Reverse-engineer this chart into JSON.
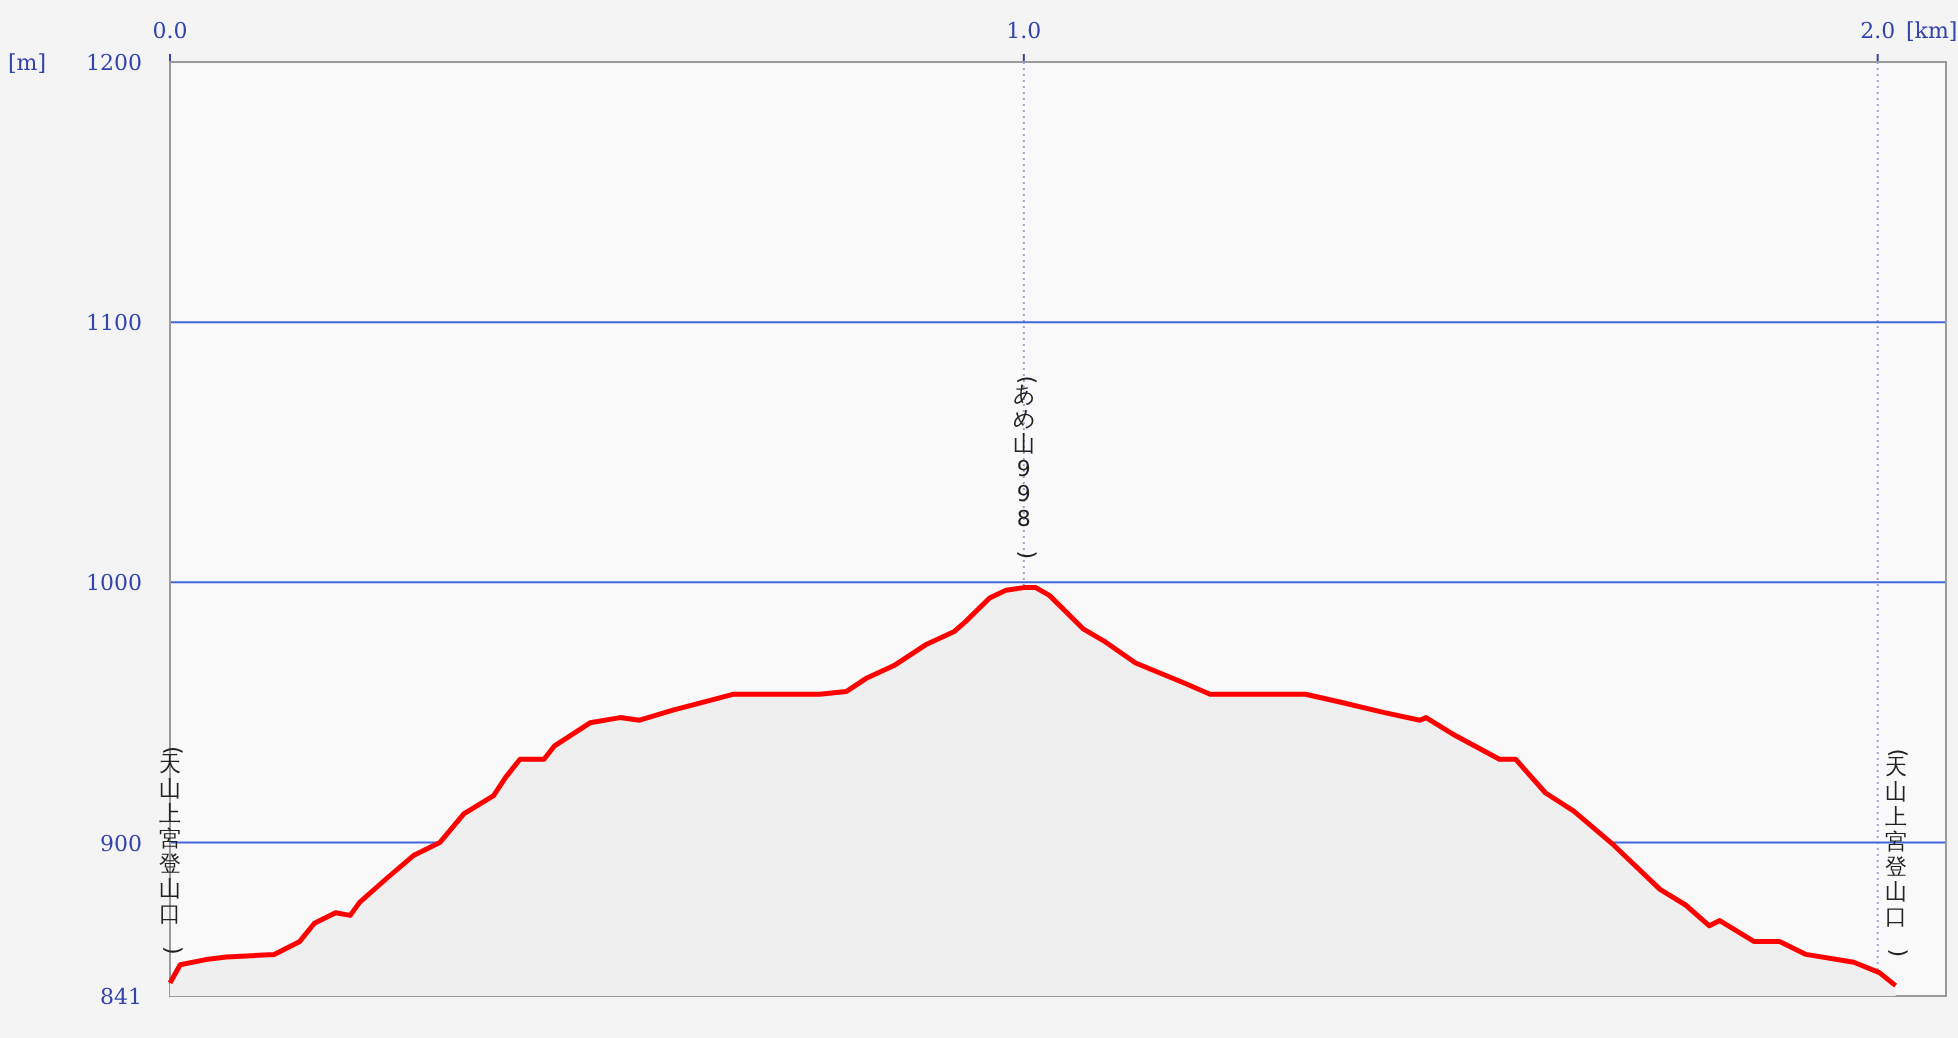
{
  "chart_data": {
    "type": "area",
    "xlabel": "[km]",
    "ylabel": "[m]",
    "xlim": [
      0,
      2.08
    ],
    "xticks": [
      {
        "value": 0,
        "label": "0.0"
      },
      {
        "value": 1,
        "label": "1.0"
      },
      {
        "value": 2,
        "label": "2.0"
      }
    ],
    "ylim": [
      841,
      1200
    ],
    "yticks": [
      841,
      900,
      1000,
      1100,
      1200
    ],
    "grid": true,
    "series": [
      {
        "color": "#ff0000",
        "x": [
          0,
          0.012,
          0.042,
          0.066,
          0.122,
          0.152,
          0.169,
          0.194,
          0.211,
          0.222,
          0.253,
          0.285,
          0.316,
          0.344,
          0.379,
          0.393,
          0.41,
          0.438,
          0.45,
          0.492,
          0.527,
          0.55,
          0.59,
          0.637,
          0.66,
          0.761,
          0.792,
          0.815,
          0.848,
          0.885,
          0.918,
          0.932,
          0.96,
          0.979,
          1.0,
          1.014,
          1.03,
          1.07,
          1.096,
          1.131,
          1.19,
          1.218,
          1.33,
          1.37,
          1.421,
          1.464,
          1.471,
          1.506,
          1.557,
          1.576,
          1.611,
          1.644,
          1.691,
          1.745,
          1.775,
          1.803,
          1.815,
          1.855,
          1.885,
          1.916,
          1.972,
          2.002,
          2.021
        ],
        "values": [
          846,
          853,
          855,
          856,
          857,
          862,
          869,
          873,
          872,
          877,
          886,
          895,
          900,
          911,
          918,
          925,
          932,
          932,
          937,
          946,
          948,
          947,
          951,
          955,
          957,
          957,
          958,
          963,
          968,
          976,
          981,
          985,
          994,
          997,
          998,
          998,
          995,
          982,
          977,
          969,
          961,
          957,
          957,
          954,
          950,
          947,
          948,
          941,
          932,
          932,
          919,
          912,
          899,
          882,
          876,
          868,
          870,
          862,
          862,
          857,
          854,
          850,
          845
        ]
      }
    ],
    "annotations": [
      "(天山上宮登山口)",
      {
        "text": "(あめ山998)",
        "x": 1.0,
        "y": 998
      },
      "(天山上宮登山口)"
    ]
  }
}
